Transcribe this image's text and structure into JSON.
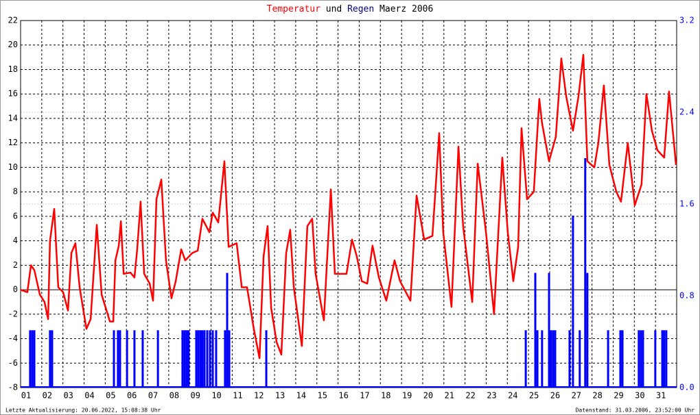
{
  "chart_data": {
    "type": "line_bar",
    "title_parts": [
      "und",
      "Maerz 2006"
    ],
    "footer_left": "Letzte Aktualisierung: 20.06.2022, 15:08:38 Uhr",
    "footer_right": "Datenstand: 31.03.2006, 23:52:00 Uhr",
    "xlim": [
      1,
      32
    ],
    "xticks": [
      {
        "value": 1,
        "label": "01"
      },
      {
        "value": 2,
        "label": "02"
      },
      {
        "value": 3,
        "label": "03"
      },
      {
        "value": 4,
        "label": "04"
      },
      {
        "value": 5,
        "label": "05"
      },
      {
        "value": 6,
        "label": "06"
      },
      {
        "value": 7,
        "label": "07"
      },
      {
        "value": 8,
        "label": "08"
      },
      {
        "value": 9,
        "label": "09"
      },
      10,
      11,
      12,
      13,
      14,
      15,
      16,
      17,
      18,
      19,
      20,
      21,
      22,
      23,
      24,
      25,
      26,
      27,
      28,
      29,
      30,
      31
    ],
    "ylim": [
      -8,
      22
    ],
    "yticks": [
      -8,
      -6,
      -4,
      -2,
      0,
      2,
      4,
      6,
      8,
      10,
      12,
      14,
      16,
      18,
      20,
      22
    ],
    "y2lim": [
      0,
      3.2
    ],
    "y2ticks": [
      {
        "value": 0,
        "label": "0.0"
      },
      0.8,
      1.6,
      2.4,
      3.2
    ],
    "grid": true,
    "series": [
      {
        "name": "Temperatur",
        "color": "#ff0000",
        "x": [
          1.0,
          1.32,
          1.49,
          1.65,
          1.91,
          2.13,
          2.3,
          2.39,
          2.59,
          2.78,
          3.01,
          3.24,
          3.4,
          3.59,
          3.79,
          4.11,
          4.31,
          4.6,
          4.83,
          5.22,
          5.38,
          5.48,
          5.64,
          5.74,
          5.87,
          6.19,
          6.38,
          6.51,
          6.67,
          6.84,
          7.1,
          7.26,
          7.42,
          7.65,
          7.87,
          8.13,
          8.33,
          8.59,
          8.78,
          9.11,
          9.37,
          9.59,
          9.92,
          10.08,
          10.34,
          10.63,
          10.83,
          11.21,
          11.45,
          11.7,
          12.02,
          12.29,
          12.48,
          12.67,
          12.84,
          13.1,
          13.32,
          13.55,
          13.74,
          13.91,
          14.29,
          14.55,
          14.78,
          14.94,
          15.33,
          15.66,
          15.85,
          16.4,
          16.66,
          16.89,
          17.12,
          17.38,
          17.63,
          17.93,
          18.28,
          18.67,
          18.93,
          19.42,
          19.71,
          20.07,
          20.46,
          20.78,
          20.97,
          21.36,
          21.69,
          21.91,
          22.34,
          22.6,
          22.99,
          23.37,
          23.76,
          24.02,
          24.28,
          24.51,
          24.67,
          24.93,
          25.25,
          25.51,
          25.64,
          25.97,
          26.29,
          26.55,
          26.78,
          27.1,
          27.36,
          27.59,
          27.78,
          28.11,
          28.3,
          28.56,
          28.82,
          29.15,
          29.37,
          29.69,
          30.02,
          30.34,
          30.57,
          30.83,
          31.09,
          31.41,
          31.64,
          31.97
        ],
        "values": [
          0,
          -0.2,
          2.0,
          1.6,
          -0.4,
          -1,
          -2.4,
          4,
          6.6,
          0.2,
          -0.2,
          -1.7,
          3,
          3.8,
          0.2,
          -3.2,
          -2.4,
          5.3,
          -0.4,
          -2.6,
          -2.6,
          2.4,
          3.6,
          5.6,
          1.3,
          1.4,
          1.0,
          3.3,
          7.2,
          1.3,
          0.5,
          -0.9,
          7.4,
          9.0,
          2.4,
          -0.7,
          0.7,
          3.3,
          2.4,
          3,
          3.2,
          5.8,
          4.7,
          6.3,
          5.5,
          10.5,
          3.5,
          3.8,
          0.2,
          0.2,
          -3.2,
          -5.6,
          2.7,
          5.2,
          -1.5,
          -4.3,
          -5.3,
          3,
          4.9,
          0.2,
          -4.6,
          5.2,
          5.8,
          1.3,
          -2.5,
          8.2,
          1.3,
          1.3,
          4.1,
          2.7,
          0.7,
          0.5,
          3.6,
          1.0,
          -0.9,
          2.4,
          0.7,
          -0.9,
          7.7,
          4.1,
          4.4,
          12.8,
          4.7,
          -1.4,
          11.7,
          5.2,
          -1,
          10.3,
          4.7,
          -2,
          10.8,
          4.7,
          0.7,
          3.5,
          13.2,
          7.4,
          8,
          15.6,
          13.6,
          10.5,
          12.5,
          18.9,
          15.8,
          13,
          15.8,
          19.2,
          10.5,
          10,
          12,
          16.7,
          10.2,
          8,
          7.2,
          12,
          6.9,
          8.6,
          16,
          13,
          11.4,
          10.8,
          16.2,
          10.2
        ]
      },
      {
        "name": "Regen",
        "color": "#0000ff",
        "axis": "y2",
        "x": [
          1.45,
          1.55,
          1.65,
          2.39,
          2.49,
          5.41,
          5.6,
          5.7,
          6.03,
          6.38,
          6.77,
          7.49,
          8.65,
          8.75,
          8.85,
          8.94,
          9.3,
          9.4,
          9.5,
          9.59,
          9.69,
          9.82,
          9.95,
          10.08,
          10.24,
          10.66,
          10.76,
          10.86,
          12.61,
          24.87,
          25.32,
          25.42,
          25.64,
          25.97,
          26.06,
          26.16,
          26.26,
          26.94,
          27.1,
          27.42,
          27.68,
          27.78,
          28.76,
          29.34,
          29.44,
          30.21,
          30.31,
          30.41,
          30.99,
          31.32,
          31.41,
          31.51
        ],
        "values": [
          0.5,
          0.5,
          0.5,
          0.5,
          0.5,
          0.5,
          0.5,
          0.5,
          0.5,
          0.5,
          0.5,
          0.5,
          0.5,
          0.5,
          0.5,
          0.5,
          0.5,
          0.5,
          0.5,
          0.5,
          0.5,
          0.5,
          0.5,
          0.5,
          0.5,
          0.5,
          1.0,
          0.5,
          0.5,
          0.5,
          1.0,
          0.5,
          0.5,
          1.0,
          0.5,
          0.5,
          0.5,
          0.5,
          1.5,
          0.5,
          2.0,
          1.0,
          0.5,
          0.5,
          0.5,
          0.5,
          0.5,
          0.5,
          0.5,
          0.5,
          0.5,
          0.5
        ]
      }
    ]
  }
}
